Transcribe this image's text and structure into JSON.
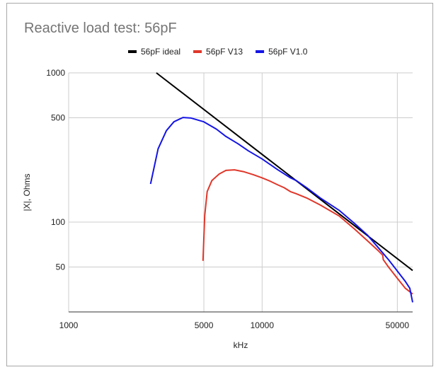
{
  "chart_data": {
    "type": "line",
    "title": "Reactive load test: 56pF",
    "xlabel": "kHz",
    "ylabel": "|X|, Ohms",
    "x_scale": "log",
    "y_scale": "log",
    "xlim": [
      1000,
      60000
    ],
    "ylim": [
      25,
      1000
    ],
    "x_ticks": [
      1000,
      5000,
      10000,
      50000
    ],
    "x_tick_labels": [
      "1000",
      "5000",
      "10000",
      "50000"
    ],
    "y_ticks": [
      1000,
      500,
      100,
      50
    ],
    "y_tick_labels": [
      "1000",
      "500",
      "100",
      "50"
    ],
    "x_gridlines": [
      1000,
      5000,
      10000,
      50000
    ],
    "y_gridlines": [
      1000,
      500,
      100,
      50
    ],
    "legend_position": "top",
    "series": [
      {
        "name": "56pF ideal",
        "color": "#000000",
        "points": [
          [
            2840,
            1000
          ],
          [
            60000,
            47.4
          ]
        ]
      },
      {
        "name": "56pF V13",
        "color": "#e0372a",
        "points": [
          [
            4950,
            55
          ],
          [
            5050,
            110
          ],
          [
            5200,
            160
          ],
          [
            5500,
            190
          ],
          [
            6000,
            210
          ],
          [
            6500,
            222
          ],
          [
            7200,
            224
          ],
          [
            8000,
            218
          ],
          [
            9000,
            208
          ],
          [
            10000,
            198
          ],
          [
            11000,
            188
          ],
          [
            12000,
            178
          ],
          [
            13000,
            170
          ],
          [
            14000,
            160
          ],
          [
            15000,
            155
          ],
          [
            17000,
            145
          ],
          [
            20000,
            130
          ],
          [
            25000,
            110
          ],
          [
            30000,
            90
          ],
          [
            35000,
            75
          ],
          [
            40000,
            64
          ],
          [
            42000,
            60
          ],
          [
            42300,
            56
          ],
          [
            45000,
            50
          ],
          [
            50000,
            42
          ],
          [
            55000,
            36
          ],
          [
            60000,
            33
          ]
        ]
      },
      {
        "name": "56pF V1.0",
        "color": "#1414e6",
        "points": [
          [
            2650,
            180
          ],
          [
            2900,
            310
          ],
          [
            3200,
            410
          ],
          [
            3500,
            470
          ],
          [
            3900,
            502
          ],
          [
            4300,
            498
          ],
          [
            5000,
            470
          ],
          [
            5800,
            420
          ],
          [
            6500,
            375
          ],
          [
            7500,
            335
          ],
          [
            8500,
            300
          ],
          [
            10000,
            265
          ],
          [
            12000,
            225
          ],
          [
            14000,
            198
          ],
          [
            15000,
            190
          ],
          [
            17000,
            170
          ],
          [
            20000,
            145
          ],
          [
            25000,
            120
          ],
          [
            30000,
            98
          ],
          [
            35000,
            82
          ],
          [
            40000,
            67
          ],
          [
            45000,
            56
          ],
          [
            50000,
            47
          ],
          [
            55000,
            40
          ],
          [
            58000,
            36
          ],
          [
            60000,
            29
          ]
        ]
      }
    ]
  }
}
